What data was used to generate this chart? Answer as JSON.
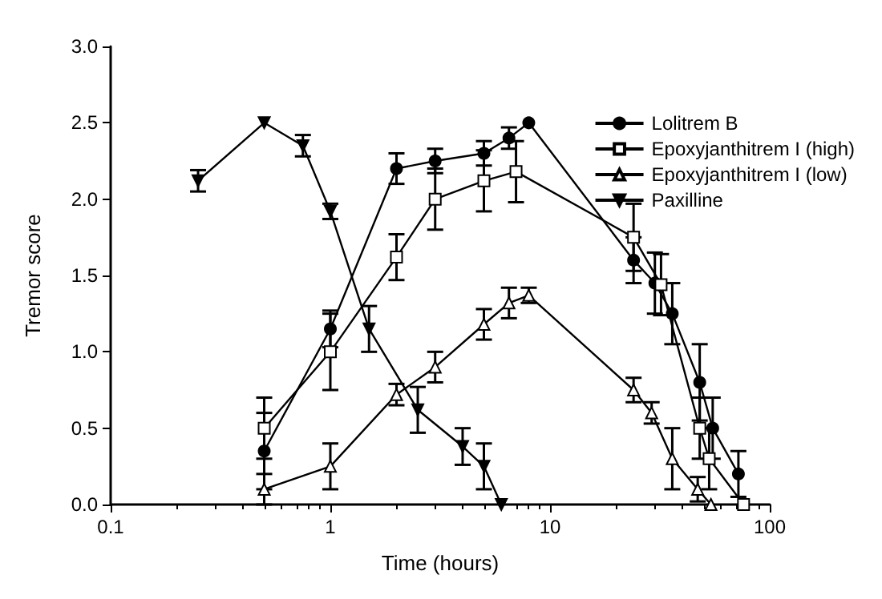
{
  "chart_data": {
    "type": "line",
    "xlabel": "Time (hours)",
    "ylabel": "Tremor score",
    "log": "x",
    "xlim": [
      0.1,
      100
    ],
    "xticks": [
      0.1,
      1,
      10,
      100
    ],
    "ylim": [
      0,
      3
    ],
    "yticks": [
      {
        "value": 0,
        "label": "0.0"
      },
      {
        "value": 0.5,
        "label": "0.5"
      },
      {
        "value": 1,
        "label": "1.0"
      },
      {
        "value": 1.5,
        "label": "1.5"
      },
      {
        "value": 2,
        "label": "2.0"
      },
      {
        "value": 2.5,
        "label": "2.5"
      },
      {
        "value": 3,
        "label": "3.0"
      }
    ],
    "grid": false,
    "legend": "top right",
    "line_style": "solid",
    "series": [
      {
        "name": "Lolitrem B",
        "color": "#000000",
        "marker": "circle",
        "x": [
          0.5,
          1,
          2,
          3,
          5,
          6.5,
          8,
          24,
          30,
          36,
          48,
          55,
          72
        ],
        "values": [
          0.35,
          1.15,
          2.2,
          2.25,
          2.3,
          2.4,
          2.5,
          1.6,
          1.45,
          1.25,
          0.8,
          0.5,
          0.2
        ],
        "errors": [
          0.25,
          0.12,
          0.1,
          0.08,
          0.08,
          0.07,
          null,
          0.15,
          0.2,
          0.2,
          0.25,
          0.2,
          0.15
        ]
      },
      {
        "name": "Epoxyjanthitrem I (high)",
        "color": "#000000",
        "marker": "square",
        "x": [
          0.5,
          1,
          2,
          3,
          5,
          7,
          24,
          32,
          48,
          53,
          76
        ],
        "values": [
          0.5,
          1.0,
          1.62,
          2.0,
          2.12,
          2.18,
          1.75,
          1.44,
          0.5,
          0.3,
          0.0
        ],
        "errors": [
          0.2,
          0.25,
          0.15,
          0.2,
          0.2,
          0.2,
          0.22,
          0.2,
          0.2,
          0.2,
          null
        ]
      },
      {
        "name": "Epoxyjanthitrem I (low)",
        "color": "#000000",
        "marker": "triangle",
        "x": [
          0.5,
          1,
          2,
          3,
          5,
          6.5,
          8,
          24,
          29,
          36,
          47,
          54
        ],
        "values": [
          0.1,
          0.25,
          0.72,
          0.9,
          1.18,
          1.32,
          1.37,
          0.75,
          0.6,
          0.3,
          0.1,
          0.0
        ],
        "errors": [
          0.1,
          0.15,
          0.07,
          0.1,
          0.1,
          0.1,
          0.05,
          0.08,
          0.07,
          0.2,
          0.08,
          null
        ]
      },
      {
        "name": "Paxilline",
        "color": "#000000",
        "marker": "triangle-down",
        "x": [
          0.25,
          0.5,
          0.75,
          1,
          1.5,
          2.5,
          4,
          5,
          6
        ],
        "values": [
          2.12,
          2.5,
          2.35,
          1.92,
          1.15,
          0.62,
          0.38,
          0.25,
          0.0
        ],
        "errors": [
          0.07,
          null,
          0.07,
          0.05,
          0.15,
          0.15,
          0.12,
          0.15,
          null
        ]
      }
    ]
  }
}
